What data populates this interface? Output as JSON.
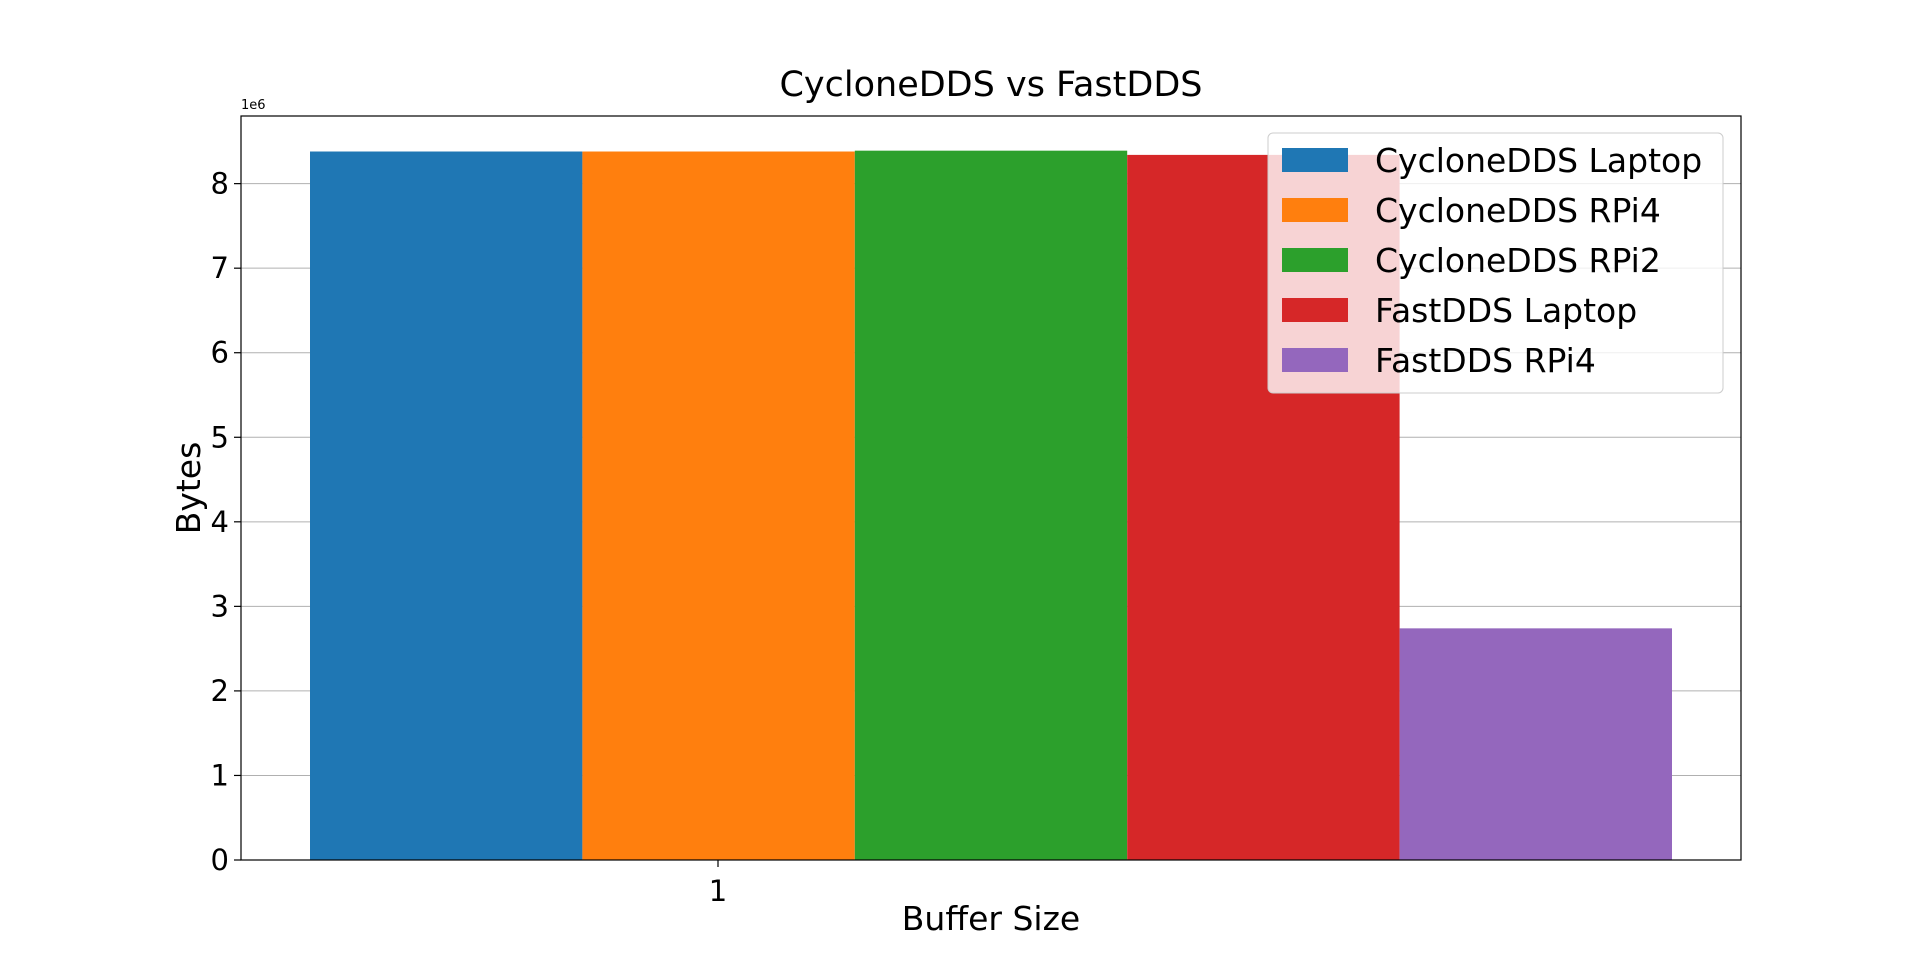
{
  "chart_data": {
    "type": "bar",
    "title": "CycloneDDS vs FastDDS",
    "xlabel": "Buffer Size",
    "ylabel": "Bytes",
    "y_offset_label": "1e6",
    "categories": [
      "1"
    ],
    "ylim": [
      0,
      8800000
    ],
    "yticks": [
      0,
      1000000,
      2000000,
      3000000,
      4000000,
      5000000,
      6000000,
      7000000,
      8000000
    ],
    "ytick_labels": [
      "0",
      "1",
      "2",
      "3",
      "4",
      "5",
      "6",
      "7",
      "8"
    ],
    "grid": "y-axis, light gray",
    "legend_position": "upper right",
    "series": [
      {
        "name": "CycloneDDS Laptop",
        "values": [
          8380000
        ],
        "color": "#1f77b4"
      },
      {
        "name": "CycloneDDS RPi4",
        "values": [
          8380000
        ],
        "color": "#ff7f0e"
      },
      {
        "name": "CycloneDDS RPi2",
        "values": [
          8390000
        ],
        "color": "#2ca02c"
      },
      {
        "name": "FastDDS Laptop",
        "values": [
          8340000
        ],
        "color": "#d62728"
      },
      {
        "name": "FastDDS RPi4",
        "values": [
          2740000
        ],
        "color": "#9467bd"
      }
    ]
  }
}
